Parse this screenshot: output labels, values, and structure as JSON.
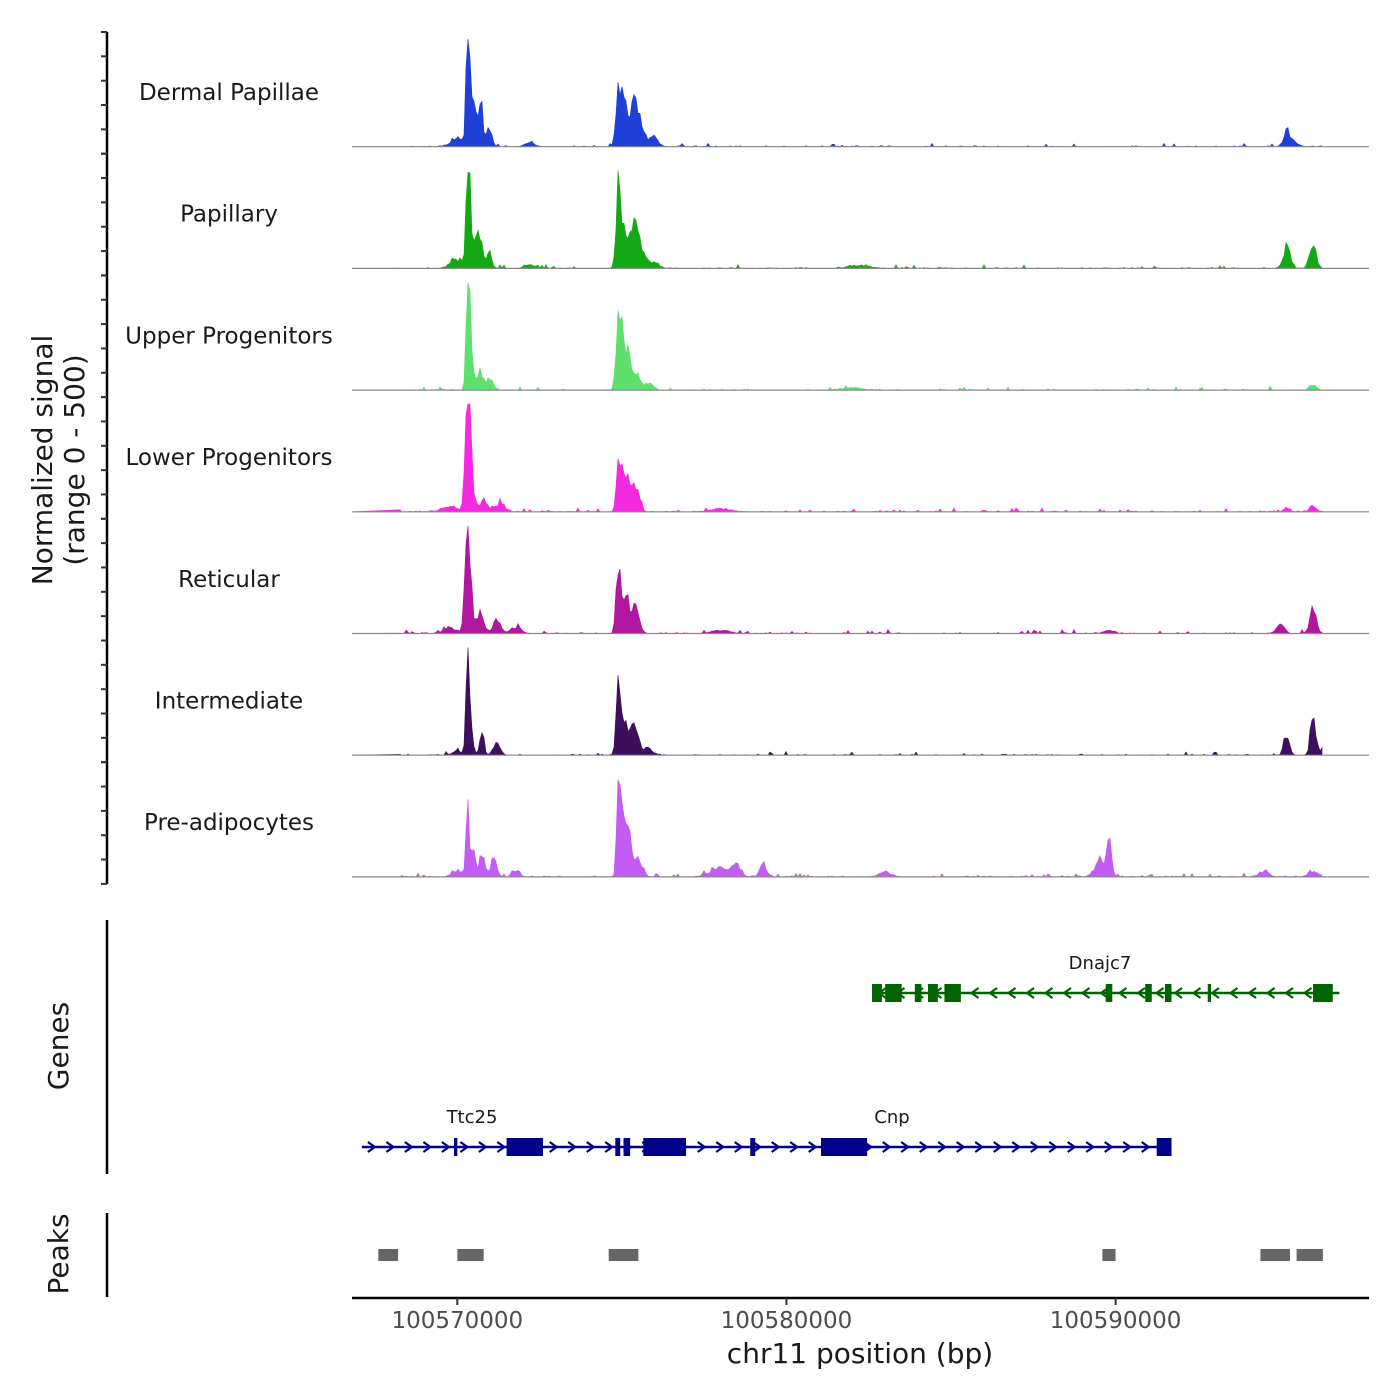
{
  "chart_data": {
    "type": "area",
    "title": "",
    "ylabel": [
      "Normalized signal",
      "(range 0 - 500)"
    ],
    "xlabel": "chr11 position (bp)",
    "xlim": [
      100566800,
      100597700
    ],
    "x_ticks": [
      100570000,
      100580000,
      100590000
    ],
    "x_tick_labels": [
      "100570000",
      "100580000",
      "100590000"
    ],
    "ylim": [
      0,
      500
    ],
    "tracks": [
      {
        "name": "Dermal Papillae",
        "color": "#1f3fd6",
        "peaks": [
          [
            100567600,
            25,
            70
          ],
          [
            100570000,
            35,
            200
          ],
          [
            100570320,
            430,
            50
          ],
          [
            100570380,
            230,
            80
          ],
          [
            100570560,
            150,
            60
          ],
          [
            100570720,
            190,
            60
          ],
          [
            100570960,
            100,
            80
          ],
          [
            100572200,
            20,
            150
          ],
          [
            100574900,
            230,
            80
          ],
          [
            100575100,
            190,
            120
          ],
          [
            100575400,
            170,
            120
          ],
          [
            100575600,
            70,
            150
          ],
          [
            100576000,
            40,
            120
          ],
          [
            100595200,
            65,
            100
          ],
          [
            100595400,
            20,
            150
          ]
        ],
        "noise": 0.05
      },
      {
        "name": "Papillary",
        "color": "#14a814",
        "peaks": [
          [
            100567600,
            25,
            80
          ],
          [
            100570000,
            40,
            200
          ],
          [
            100570320,
            400,
            50
          ],
          [
            100570380,
            180,
            80
          ],
          [
            100570560,
            170,
            60
          ],
          [
            100570720,
            170,
            60
          ],
          [
            100570960,
            80,
            80
          ],
          [
            100572200,
            20,
            150
          ],
          [
            100574900,
            380,
            70
          ],
          [
            100575100,
            150,
            120
          ],
          [
            100575400,
            170,
            120
          ],
          [
            100575600,
            70,
            150
          ],
          [
            100576000,
            30,
            120
          ],
          [
            100582200,
            15,
            300
          ],
          [
            100595200,
            100,
            110
          ],
          [
            100596000,
            110,
            100
          ]
        ],
        "noise": 0.05
      },
      {
        "name": "Upper Progenitors",
        "color": "#5ee06e",
        "peaks": [
          [
            100567600,
            15,
            80
          ],
          [
            100570320,
            430,
            50
          ],
          [
            100570380,
            200,
            80
          ],
          [
            100570700,
            80,
            100
          ],
          [
            100571000,
            50,
            100
          ],
          [
            100574900,
            390,
            70
          ],
          [
            100575100,
            200,
            120
          ],
          [
            100575400,
            80,
            120
          ],
          [
            100575800,
            30,
            150
          ],
          [
            100582000,
            10,
            300
          ],
          [
            100596000,
            25,
            100
          ]
        ],
        "noise": 0.04
      },
      {
        "name": "Lower Progenitors",
        "color": "#f52ae0",
        "peaks": [
          [
            100567600,
            20,
            100
          ],
          [
            100569800,
            25,
            250
          ],
          [
            100570250,
            230,
            50
          ],
          [
            100570320,
            460,
            50
          ],
          [
            100570380,
            320,
            60
          ],
          [
            100570500,
            80,
            80
          ],
          [
            100570800,
            60,
            100
          ],
          [
            100571300,
            40,
            150
          ],
          [
            100574900,
            190,
            70
          ],
          [
            100575100,
            170,
            100
          ],
          [
            100575400,
            110,
            120
          ],
          [
            100578000,
            15,
            300
          ],
          [
            100595200,
            15,
            100
          ],
          [
            100596000,
            30,
            100
          ]
        ],
        "noise": 0.06
      },
      {
        "name": "Reticular",
        "color": "#b0169e",
        "peaks": [
          [
            100567600,
            30,
            80
          ],
          [
            100569800,
            25,
            200
          ],
          [
            100570250,
            200,
            60
          ],
          [
            100570320,
            430,
            50
          ],
          [
            100570400,
            230,
            70
          ],
          [
            100570700,
            100,
            100
          ],
          [
            100571200,
            60,
            120
          ],
          [
            100571800,
            30,
            150
          ],
          [
            100574900,
            290,
            70
          ],
          [
            100575100,
            190,
            100
          ],
          [
            100575400,
            120,
            120
          ],
          [
            100578000,
            15,
            300
          ],
          [
            100589800,
            15,
            150
          ],
          [
            100595000,
            40,
            120
          ],
          [
            100596000,
            110,
            100
          ]
        ],
        "noise": 0.06
      },
      {
        "name": "Intermediate",
        "color": "#3d0f5c",
        "peaks": [
          [
            100567600,
            15,
            80
          ],
          [
            100570000,
            20,
            150
          ],
          [
            100570320,
            380,
            50
          ],
          [
            100570380,
            160,
            80
          ],
          [
            100570750,
            120,
            60
          ],
          [
            100571200,
            60,
            100
          ],
          [
            100574900,
            290,
            70
          ],
          [
            100575100,
            190,
            100
          ],
          [
            100575400,
            160,
            100
          ],
          [
            100575800,
            30,
            150
          ],
          [
            100595200,
            110,
            80
          ],
          [
            100596000,
            240,
            70
          ],
          [
            100596300,
            30,
            100
          ]
        ],
        "noise": 0.04
      },
      {
        "name": "Pre-adipocytes",
        "color": "#c35cf2",
        "peaks": [
          [
            100567600,
            15,
            80
          ],
          [
            100570000,
            30,
            150
          ],
          [
            100570320,
            320,
            50
          ],
          [
            100570500,
            150,
            60
          ],
          [
            100570750,
            100,
            80
          ],
          [
            100571100,
            80,
            100
          ],
          [
            100571800,
            30,
            100
          ],
          [
            100574900,
            470,
            50
          ],
          [
            100575000,
            250,
            80
          ],
          [
            100575200,
            180,
            100
          ],
          [
            100575500,
            80,
            120
          ],
          [
            100578000,
            40,
            300
          ],
          [
            100578500,
            50,
            120
          ],
          [
            100579300,
            60,
            100
          ],
          [
            100583000,
            20,
            200
          ],
          [
            100589800,
            160,
            80
          ],
          [
            100589500,
            70,
            150
          ],
          [
            100594500,
            25,
            150
          ],
          [
            100596000,
            25,
            150
          ]
        ],
        "noise": 0.12
      }
    ],
    "genes": [
      {
        "name": "Dnajc7",
        "strand": "-",
        "color": "#006400",
        "start": 100582600,
        "end": 100596800,
        "exons": [
          [
            100582600,
            100582900
          ],
          [
            100583000,
            100583500
          ],
          [
            100583900,
            100584100
          ],
          [
            100584300,
            100584600
          ],
          [
            100584800,
            100585300
          ],
          [
            100589700,
            100589900
          ],
          [
            100590900,
            100591100
          ],
          [
            100591500,
            100591700
          ],
          [
            100592800,
            100592900
          ],
          [
            100596000,
            100596600
          ]
        ]
      },
      {
        "name": "Ttc25",
        "strand": "+",
        "color": "#00008b",
        "start": 100567100,
        "end": 100572600,
        "exons": [
          [
            100569900,
            100570000
          ],
          [
            100571500,
            100572600
          ]
        ]
      },
      {
        "name": "Cnp",
        "strand": "+",
        "color": "#00008b",
        "start": 100571500,
        "end": 100591700,
        "exons": [
          [
            100571500,
            100572600
          ],
          [
            100574800,
            100574950
          ],
          [
            100575050,
            100575250
          ],
          [
            100575650,
            100576950
          ],
          [
            100578900,
            100579050
          ],
          [
            100581050,
            100582450
          ],
          [
            100591250,
            100591700
          ]
        ]
      }
    ],
    "peaks": [
      {
        "start": 100567600,
        "end": 100568200
      },
      {
        "start": 100570000,
        "end": 100570800
      },
      {
        "start": 100574600,
        "end": 100575500
      },
      {
        "start": 100589600,
        "end": 100590000
      },
      {
        "start": 100594400,
        "end": 100595300
      },
      {
        "start": 100595500,
        "end": 100596300
      }
    ],
    "panel_labels": {
      "genes": "Genes",
      "peaks": "Peaks"
    }
  }
}
